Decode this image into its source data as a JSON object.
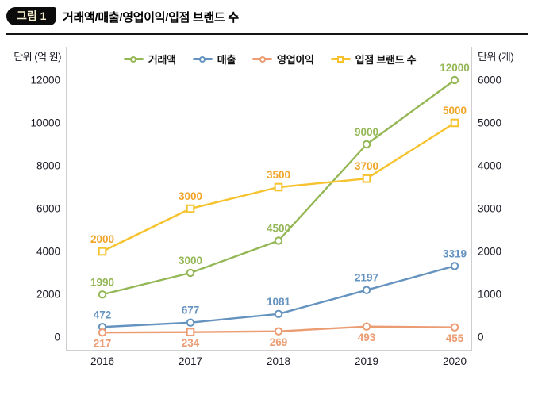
{
  "header": {
    "badge": "그림 1",
    "title": "거래액/매출/영업이익/입점 브랜드 수"
  },
  "chart_data": {
    "type": "line",
    "title": "거래액/매출/영업이익/입점 브랜드 수",
    "categories": [
      "2016",
      "2017",
      "2018",
      "2019",
      "2020"
    ],
    "series": [
      {
        "name": "거래액",
        "slug": "transaction-amount",
        "axis": "left",
        "color": "#94b755",
        "label_color": "#94b755",
        "marker": "circle",
        "label_position": "above",
        "values": [
          1990,
          3000,
          4500,
          9000,
          12000
        ]
      },
      {
        "name": "매출",
        "slug": "sales",
        "axis": "left",
        "color": "#6593c0",
        "label_color": "#6593c0",
        "marker": "circle",
        "label_position": "above",
        "values": [
          472,
          677,
          1081,
          2197,
          3319
        ]
      },
      {
        "name": "영업이익",
        "slug": "operating-profit",
        "axis": "left",
        "color": "#ec9c72",
        "label_color": "#ec9c72",
        "marker": "circle",
        "marker_overrides": {
          "1": "square"
        },
        "label_position": "below",
        "values": [
          217,
          234,
          269,
          493,
          455
        ]
      },
      {
        "name": "입점 브랜드 수",
        "slug": "brand-count",
        "axis": "right",
        "color": "#f6c22d",
        "label_color": "#f0a426",
        "marker": "square",
        "label_position": "above",
        "values": [
          2000,
          3000,
          3500,
          3700,
          5000
        ]
      }
    ],
    "left_axis": {
      "label": "단위 (억 원)",
      "min": 0,
      "max": 12000,
      "tick_step": 2000
    },
    "right_axis": {
      "label": "단위 (개)",
      "min": 0,
      "max": 6000,
      "tick_step": 1000
    },
    "legend_position": "top",
    "grid": false,
    "colors": {
      "axis_text": "#1b1b27",
      "plot_border": "#b3b3b3",
      "badge_bg": "#0b0b0b",
      "badge_text": "#f6efd0"
    }
  }
}
